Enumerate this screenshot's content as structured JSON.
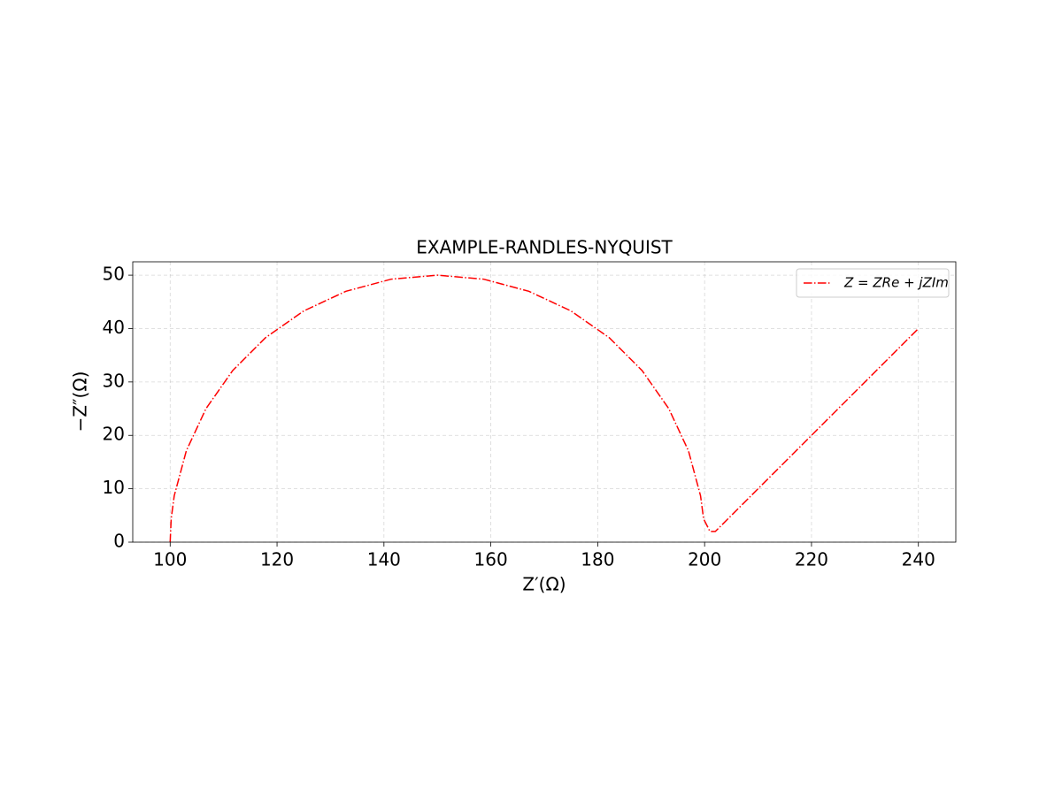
{
  "chart_data": {
    "type": "line",
    "title": "EXAMPLE-RANDLES-NYQUIST",
    "x_label": "Z′(Ω)",
    "y_label": "−Z″(Ω)",
    "x": [
      100,
      100.19,
      100.76,
      103.02,
      106.7,
      111.7,
      117.86,
      125,
      132.9,
      141.32,
      150,
      158.68,
      167.1,
      175,
      182.14,
      188.3,
      193.3,
      196.98,
      199.24,
      199.81,
      200.5,
      201,
      202,
      240
    ],
    "series": [
      {
        "name": "Z = ZRe + jZIm",
        "color": "#ff0000",
        "values": [
          0,
          4.36,
          8.68,
          17.1,
          25,
          32.14,
          38.3,
          43.3,
          46.98,
          49.24,
          50,
          49.24,
          46.98,
          43.3,
          38.3,
          32.14,
          25,
          17.1,
          8.68,
          4.36,
          3,
          2,
          2,
          40
        ]
      }
    ],
    "xlim": [
      93,
      247
    ],
    "ylim": [
      0,
      52.5
    ],
    "xticks": [
      100,
      120,
      140,
      160,
      180,
      200,
      220,
      240
    ],
    "yticks": [
      0,
      10,
      20,
      30,
      40,
      50
    ],
    "grid": true,
    "legend": "upper right"
  }
}
